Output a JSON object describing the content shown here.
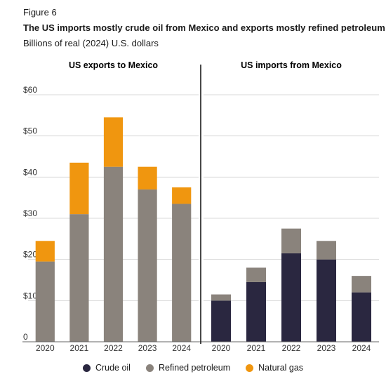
{
  "figure_label": "Figure 6",
  "title": "The US imports mostly crude oil from Mexico and exports mostly refined petroleum",
  "subtitle": "Billions of real (2024) U.S. dollars",
  "colors": {
    "crude_oil": "#2a2740",
    "refined_petroleum": "#8a837c",
    "natural_gas": "#f0960f",
    "gridline": "#d9d9d9",
    "divider": "#1a1a1a"
  },
  "legend": [
    {
      "name": "Crude oil",
      "color": "#2a2740"
    },
    {
      "name": "Refined petroleum",
      "color": "#8a837c"
    },
    {
      "name": "Natural gas",
      "color": "#f0960f"
    }
  ],
  "chart_data": [
    {
      "type": "bar",
      "stacked": true,
      "title": "US exports to Mexico",
      "categories": [
        "2020",
        "2021",
        "2022",
        "2023",
        "2024"
      ],
      "ylim": [
        0,
        60
      ],
      "yticks": [
        "0",
        "$10",
        "$20",
        "$30",
        "$40",
        "$50",
        "$60"
      ],
      "grid": true,
      "series": [
        {
          "name": "Crude oil",
          "values": [
            0,
            0,
            0,
            0,
            0
          ]
        },
        {
          "name": "Refined petroleum",
          "values": [
            19.5,
            31,
            42.5,
            37,
            33.5
          ]
        },
        {
          "name": "Natural gas",
          "values": [
            5,
            12.5,
            12,
            5.5,
            4
          ]
        }
      ]
    },
    {
      "type": "bar",
      "stacked": true,
      "title": "US imports from Mexico",
      "categories": [
        "2020",
        "2021",
        "2022",
        "2023",
        "2024"
      ],
      "ylim": [
        0,
        60
      ],
      "grid": true,
      "series": [
        {
          "name": "Crude oil",
          "values": [
            10,
            14.5,
            21.5,
            20,
            12
          ]
        },
        {
          "name": "Refined petroleum",
          "values": [
            1.5,
            3.5,
            6,
            4.5,
            4
          ]
        },
        {
          "name": "Natural gas",
          "values": [
            0,
            0,
            0,
            0,
            0
          ]
        }
      ]
    }
  ]
}
